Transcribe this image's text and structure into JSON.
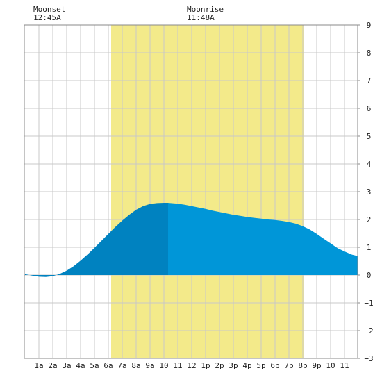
{
  "annotations": [
    {
      "label": "Moonset",
      "time": "12:45A"
    },
    {
      "label": "Moonrise",
      "time": "11:48A"
    }
  ],
  "colors": {
    "daylight": "#f3ea8a",
    "tide_past": "#0082c0",
    "tide_future": "#0096d8",
    "grid": "#c8c8c8",
    "frame": "#888888"
  },
  "chart_data": {
    "type": "area",
    "title": "",
    "xlabel": "",
    "ylabel": "",
    "x_unit": "hour of day",
    "xlim": [
      -0.05,
      23.95
    ],
    "ylim": [
      -3,
      9
    ],
    "grid": true,
    "x_ticks": [
      {
        "x": 1,
        "label": "1a"
      },
      {
        "x": 2,
        "label": "2a"
      },
      {
        "x": 3,
        "label": "3a"
      },
      {
        "x": 4,
        "label": "4a"
      },
      {
        "x": 5,
        "label": "5a"
      },
      {
        "x": 6,
        "label": "6a"
      },
      {
        "x": 7,
        "label": "7a"
      },
      {
        "x": 8,
        "label": "8a"
      },
      {
        "x": 9,
        "label": "9a"
      },
      {
        "x": 10,
        "label": "10"
      },
      {
        "x": 11,
        "label": "11"
      },
      {
        "x": 12,
        "label": "12"
      },
      {
        "x": 13,
        "label": "1p"
      },
      {
        "x": 14,
        "label": "2p"
      },
      {
        "x": 15,
        "label": "3p"
      },
      {
        "x": 16,
        "label": "4p"
      },
      {
        "x": 17,
        "label": "5p"
      },
      {
        "x": 18,
        "label": "6p"
      },
      {
        "x": 19,
        "label": "7p"
      },
      {
        "x": 20,
        "label": "8p"
      },
      {
        "x": 21,
        "label": "9p"
      },
      {
        "x": 22,
        "label": "10"
      },
      {
        "x": 23,
        "label": "11"
      }
    ],
    "y_ticks": [
      {
        "y": 9,
        "label": "9"
      },
      {
        "y": 8,
        "label": "8"
      },
      {
        "y": 7,
        "label": "7"
      },
      {
        "y": 6,
        "label": "6"
      },
      {
        "y": 5,
        "label": "5"
      },
      {
        "y": 4,
        "label": "4"
      },
      {
        "y": 3,
        "label": "3"
      },
      {
        "y": 2,
        "label": "2"
      },
      {
        "y": 1,
        "label": "1"
      },
      {
        "y": 0,
        "label": "0"
      },
      {
        "y": -1,
        "label": "−1"
      },
      {
        "y": -2,
        "label": "−2"
      },
      {
        "y": -3,
        "label": "−3"
      }
    ],
    "daylight": {
      "start": 6.2,
      "end": 20.1
    },
    "current_time": 10.3,
    "series": [
      {
        "x": [
          0,
          0.5,
          1,
          1.5,
          2,
          2.5,
          3,
          3.5,
          4,
          4.5,
          5,
          5.5,
          6,
          6.5,
          7,
          7.5,
          8,
          8.5,
          9,
          9.5,
          10,
          10.3,
          10.5,
          11,
          11.5,
          12,
          12.5,
          13,
          13.5,
          14,
          14.5,
          15,
          15.5,
          16,
          16.5,
          17,
          17.5,
          18,
          18.5,
          19,
          19.5,
          20,
          20.5,
          21,
          21.5,
          22,
          22.5,
          23,
          23.5,
          23.95
        ],
        "values": [
          0.03,
          -0.02,
          -0.06,
          -0.07,
          -0.04,
          0.04,
          0.16,
          0.32,
          0.52,
          0.74,
          0.98,
          1.23,
          1.48,
          1.73,
          1.96,
          2.17,
          2.35,
          2.48,
          2.56,
          2.59,
          2.6,
          2.6,
          2.59,
          2.57,
          2.53,
          2.48,
          2.43,
          2.38,
          2.32,
          2.27,
          2.22,
          2.17,
          2.13,
          2.09,
          2.06,
          2.03,
          2.0,
          1.98,
          1.95,
          1.91,
          1.85,
          1.76,
          1.64,
          1.48,
          1.31,
          1.14,
          0.97,
          0.85,
          0.74,
          0.68
        ]
      }
    ]
  }
}
